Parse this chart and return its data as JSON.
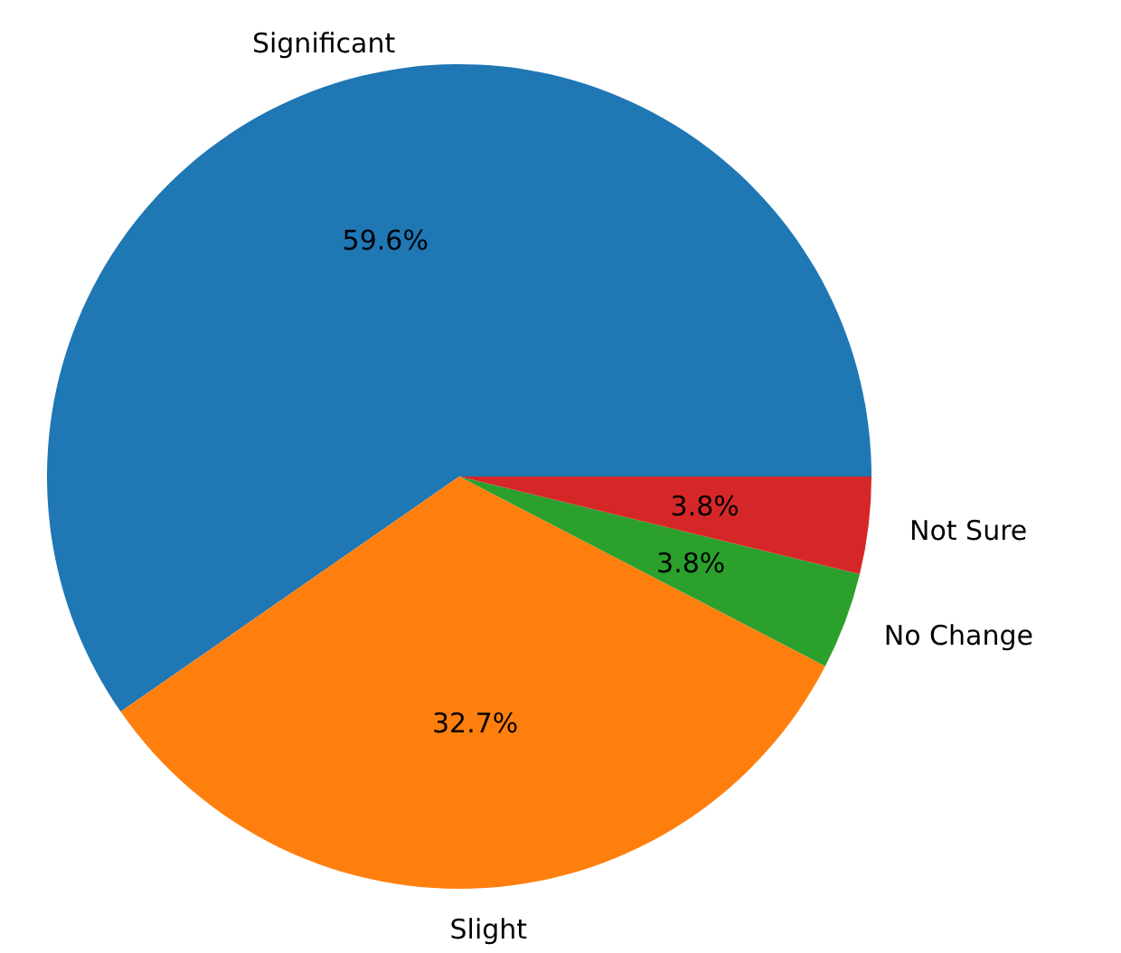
{
  "chart_data": {
    "type": "pie",
    "categories": [
      "Significant",
      "Slight",
      "No Change",
      "Not Sure"
    ],
    "values": [
      59.6,
      32.7,
      3.8,
      3.8
    ],
    "colors": [
      "#1f77b4",
      "#ff7f0e",
      "#2ca02c",
      "#d62728"
    ],
    "value_labels": [
      "59.6%",
      "32.7%",
      "3.8%",
      "3.8%"
    ]
  }
}
